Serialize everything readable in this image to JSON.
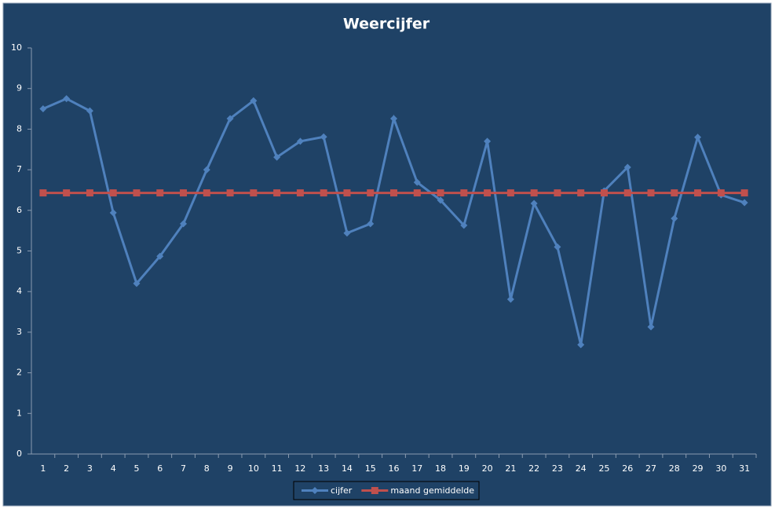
{
  "chart_data": {
    "type": "line",
    "title": "Weercijfer",
    "categories": [
      "1",
      "2",
      "3",
      "4",
      "5",
      "6",
      "7",
      "8",
      "9",
      "10",
      "11",
      "12",
      "13",
      "14",
      "15",
      "16",
      "17",
      "18",
      "19",
      "20",
      "21",
      "22",
      "23",
      "24",
      "25",
      "26",
      "27",
      "28",
      "29",
      "30",
      "31"
    ],
    "series": [
      {
        "name": "cijfer",
        "color": "#4f81bd",
        "marker": "diamond",
        "values": [
          8.5,
          8.75,
          8.45,
          5.94,
          4.2,
          4.87,
          5.67,
          7.0,
          8.26,
          8.7,
          7.31,
          7.7,
          7.81,
          5.44,
          5.67,
          8.26,
          6.69,
          6.25,
          5.63,
          7.7,
          3.81,
          6.17,
          5.1,
          2.69,
          6.48,
          7.06,
          3.13,
          5.8,
          7.8,
          6.38,
          6.19
        ]
      },
      {
        "name": "maand gemiddelde",
        "color": "#c0504d",
        "marker": "square",
        "values": [
          6.43,
          6.43,
          6.43,
          6.43,
          6.43,
          6.43,
          6.43,
          6.43,
          6.43,
          6.43,
          6.43,
          6.43,
          6.43,
          6.43,
          6.43,
          6.43,
          6.43,
          6.43,
          6.43,
          6.43,
          6.43,
          6.43,
          6.43,
          6.43,
          6.43,
          6.43,
          6.43,
          6.43,
          6.43,
          6.43,
          6.43
        ]
      }
    ],
    "ylim": [
      0,
      10
    ],
    "yticks": [
      0,
      1,
      2,
      3,
      4,
      5,
      6,
      7,
      8,
      9,
      10
    ],
    "grid": false,
    "legend": "bottom"
  }
}
